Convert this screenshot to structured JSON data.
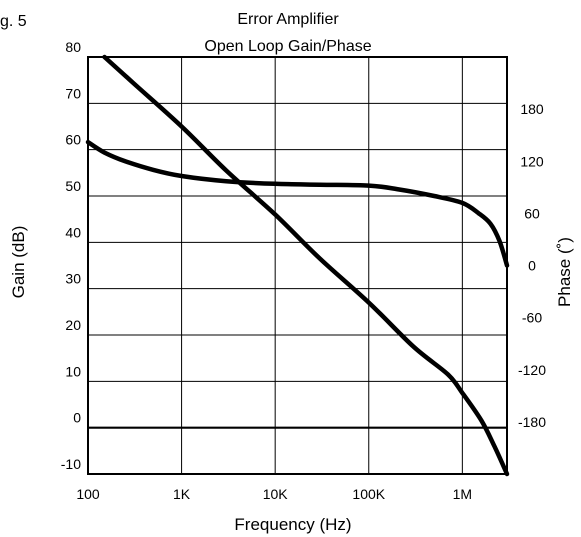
{
  "figure_label": "g. 5",
  "chart_data": {
    "type": "line",
    "title": "Error Amplifier",
    "subtitle": "Open Loop Gain/Phase",
    "xlabel": "Frequency (Hz)",
    "ylabel": "Gain (dB)",
    "y2label": "Phase (˚)",
    "xscale": "log",
    "xlim": [
      100,
      3000000
    ],
    "ylim": [
      -10,
      80
    ],
    "y2lim": [
      -240,
      240
    ],
    "grid": true,
    "x_ticks": [
      {
        "value": 100,
        "label": "100"
      },
      {
        "value": 1000,
        "label": "1K"
      },
      {
        "value": 10000,
        "label": "10K"
      },
      {
        "value": 100000,
        "label": "100K"
      },
      {
        "value": 1000000,
        "label": "1M"
      }
    ],
    "y_ticks": [
      {
        "value": 80,
        "label": "80"
      },
      {
        "value": 70,
        "label": "70"
      },
      {
        "value": 60,
        "label": "60"
      },
      {
        "value": 50,
        "label": "50"
      },
      {
        "value": 40,
        "label": "40"
      },
      {
        "value": 30,
        "label": "30"
      },
      {
        "value": 20,
        "label": "20"
      },
      {
        "value": 10,
        "label": "10"
      },
      {
        "value": 0,
        "label": "0"
      },
      {
        "value": -10,
        "label": "-10"
      }
    ],
    "y2_ticks": [
      {
        "value": 180,
        "label": "180"
      },
      {
        "value": 120,
        "label": "120"
      },
      {
        "value": 60,
        "label": "60"
      },
      {
        "value": 0,
        "label": "0"
      },
      {
        "value": -60,
        "label": "-60"
      },
      {
        "value": -120,
        "label": "-120"
      },
      {
        "value": -180,
        "label": "-180"
      }
    ],
    "series": [
      {
        "axis": "left",
        "points": [
          {
            "x": 150,
            "y": 80
          },
          {
            "x": 300,
            "y": 74.5
          },
          {
            "x": 1000,
            "y": 65
          },
          {
            "x": 3000,
            "y": 55.5
          },
          {
            "x": 10000,
            "y": 46
          },
          {
            "x": 30000,
            "y": 36.5
          },
          {
            "x": 100000,
            "y": 27
          },
          {
            "x": 300000,
            "y": 17.5
          },
          {
            "x": 700000,
            "y": 11.5
          },
          {
            "x": 1000000,
            "y": 7.5
          },
          {
            "x": 1600000,
            "y": 1.5
          },
          {
            "x": 2200000,
            "y": -4
          },
          {
            "x": 3000000,
            "y": -10
          }
        ]
      },
      {
        "axis": "right",
        "points": [
          {
            "x": 100,
            "y": 142
          },
          {
            "x": 150,
            "y": 130
          },
          {
            "x": 250,
            "y": 120
          },
          {
            "x": 500,
            "y": 110
          },
          {
            "x": 1000,
            "y": 103
          },
          {
            "x": 3000,
            "y": 97
          },
          {
            "x": 10000,
            "y": 94
          },
          {
            "x": 30000,
            "y": 93
          },
          {
            "x": 100000,
            "y": 92
          },
          {
            "x": 200000,
            "y": 88
          },
          {
            "x": 500000,
            "y": 80
          },
          {
            "x": 1000000,
            "y": 72
          },
          {
            "x": 1500000,
            "y": 60
          },
          {
            "x": 2000000,
            "y": 48
          },
          {
            "x": 2500000,
            "y": 28
          },
          {
            "x": 3000000,
            "y": 0
          }
        ]
      }
    ]
  }
}
